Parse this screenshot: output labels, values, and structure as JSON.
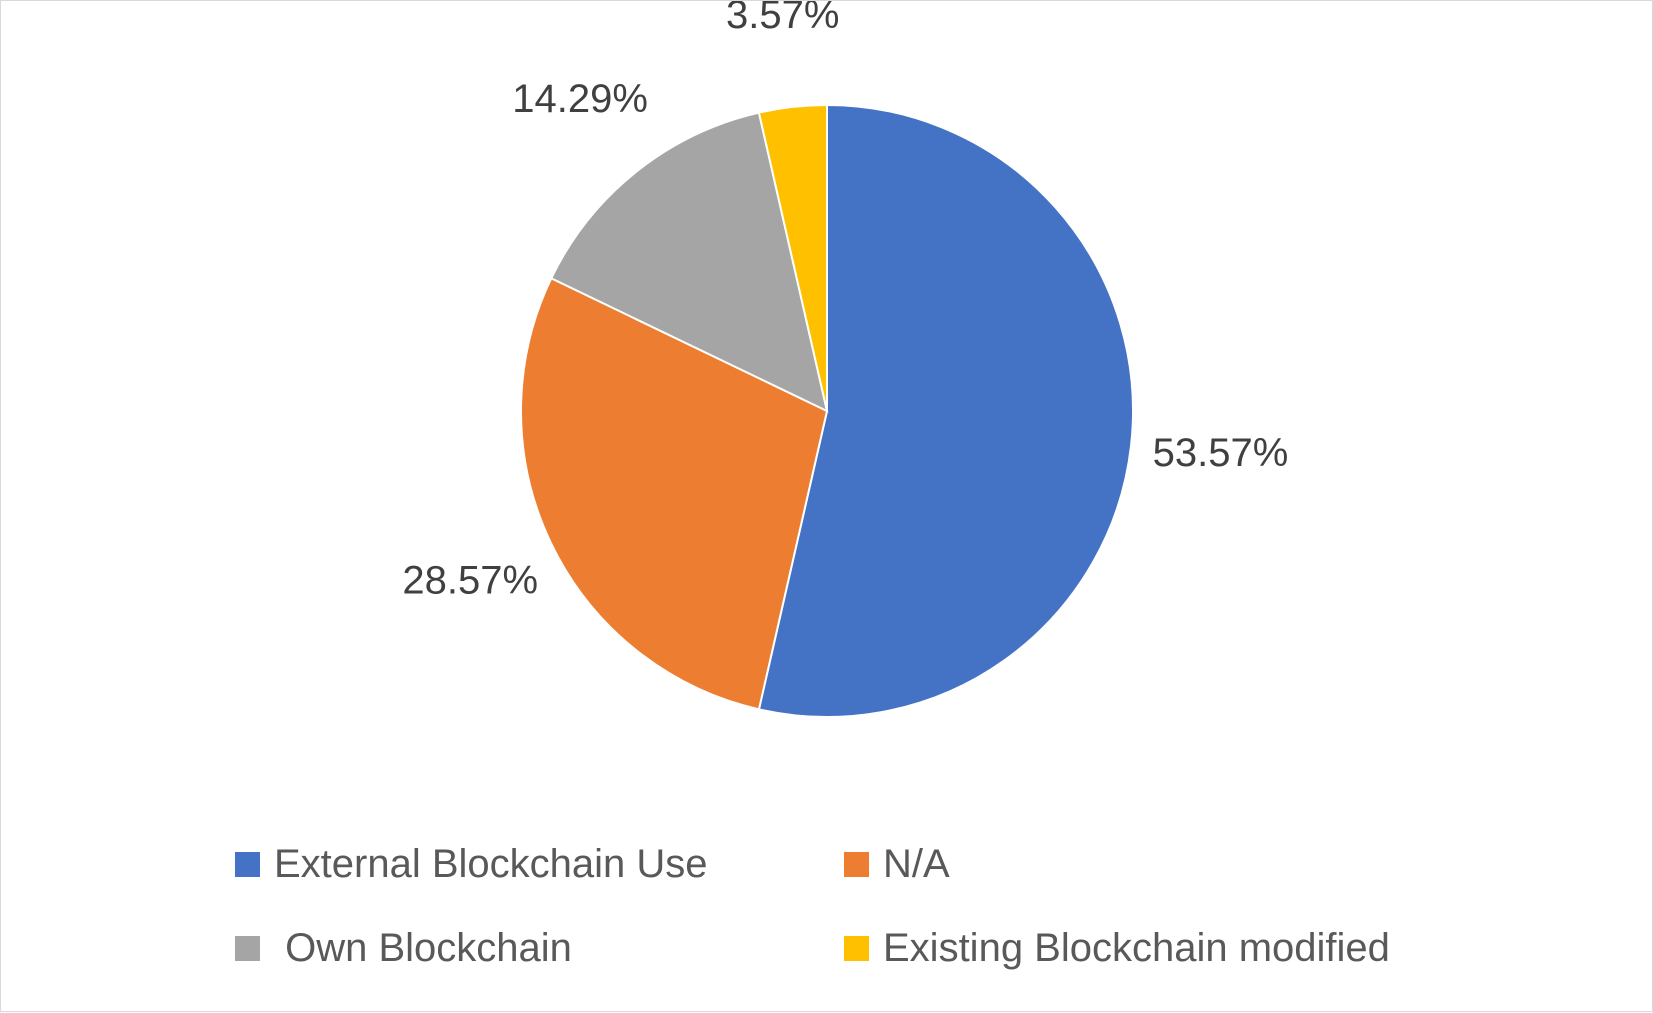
{
  "chart_data": {
    "type": "pie",
    "title": "",
    "categories": [
      "External Blockchain Use",
      "N/A",
      "Own Blockchain",
      "Existing Blockchain modified"
    ],
    "values": [
      53.57,
      28.57,
      14.29,
      3.57
    ],
    "data_labels": [
      "53.57%",
      "28.57%",
      "14.29%",
      "3.57%"
    ],
    "colors": [
      "#4472C4",
      "#ED7D31",
      "#A5A5A5",
      "#FFC000"
    ],
    "start_angle": "12 o'clock",
    "direction": "clockwise",
    "legend": {
      "position": "bottom",
      "items": [
        {
          "label": "External Blockchain Use",
          "color": "#4472C4"
        },
        {
          "label": "N/A",
          "color": "#ED7D31"
        },
        {
          "label": " Own Blockchain",
          "color": "#A5A5A5"
        },
        {
          "label": "Existing Blockchain modified",
          "color": "#FFC000"
        }
      ]
    }
  }
}
